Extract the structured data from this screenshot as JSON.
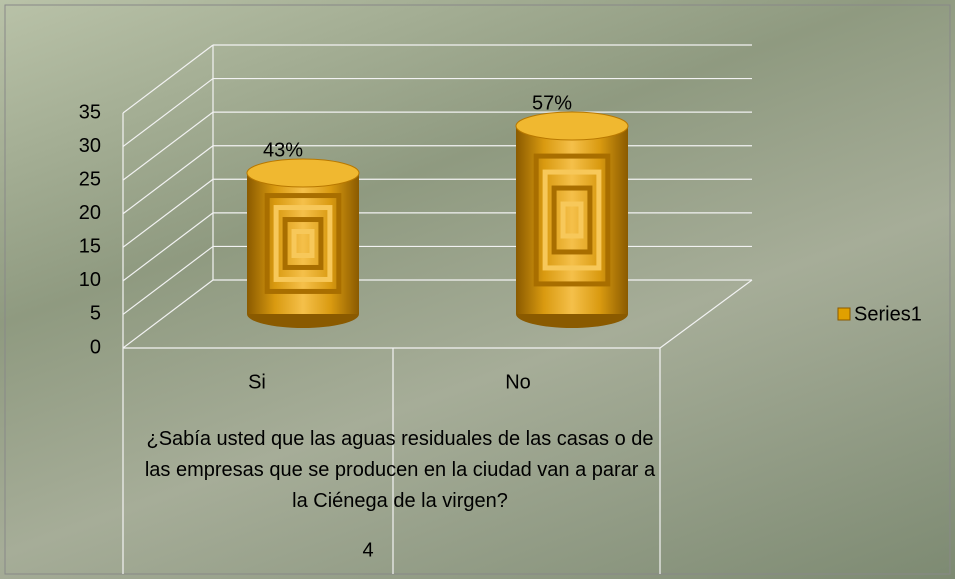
{
  "chart_data": {
    "type": "bar3d",
    "categories": [
      "Si",
      "No"
    ],
    "series": [
      {
        "name": "Series1",
        "color": "#e0a000",
        "values": [
          21,
          28
        ],
        "value_labels": [
          "43%",
          "57%"
        ]
      }
    ],
    "x_label": "¿Sabía  usted que las aguas residuales de las casas o de las empresas que se producen en la ciudad van a parar  a la Ciénega de la virgen?",
    "footnote": "4",
    "ylim": [
      0,
      35
    ],
    "yticks": [
      0,
      5,
      10,
      15,
      20,
      25,
      30,
      35
    ],
    "grid": true,
    "legend": "right"
  }
}
